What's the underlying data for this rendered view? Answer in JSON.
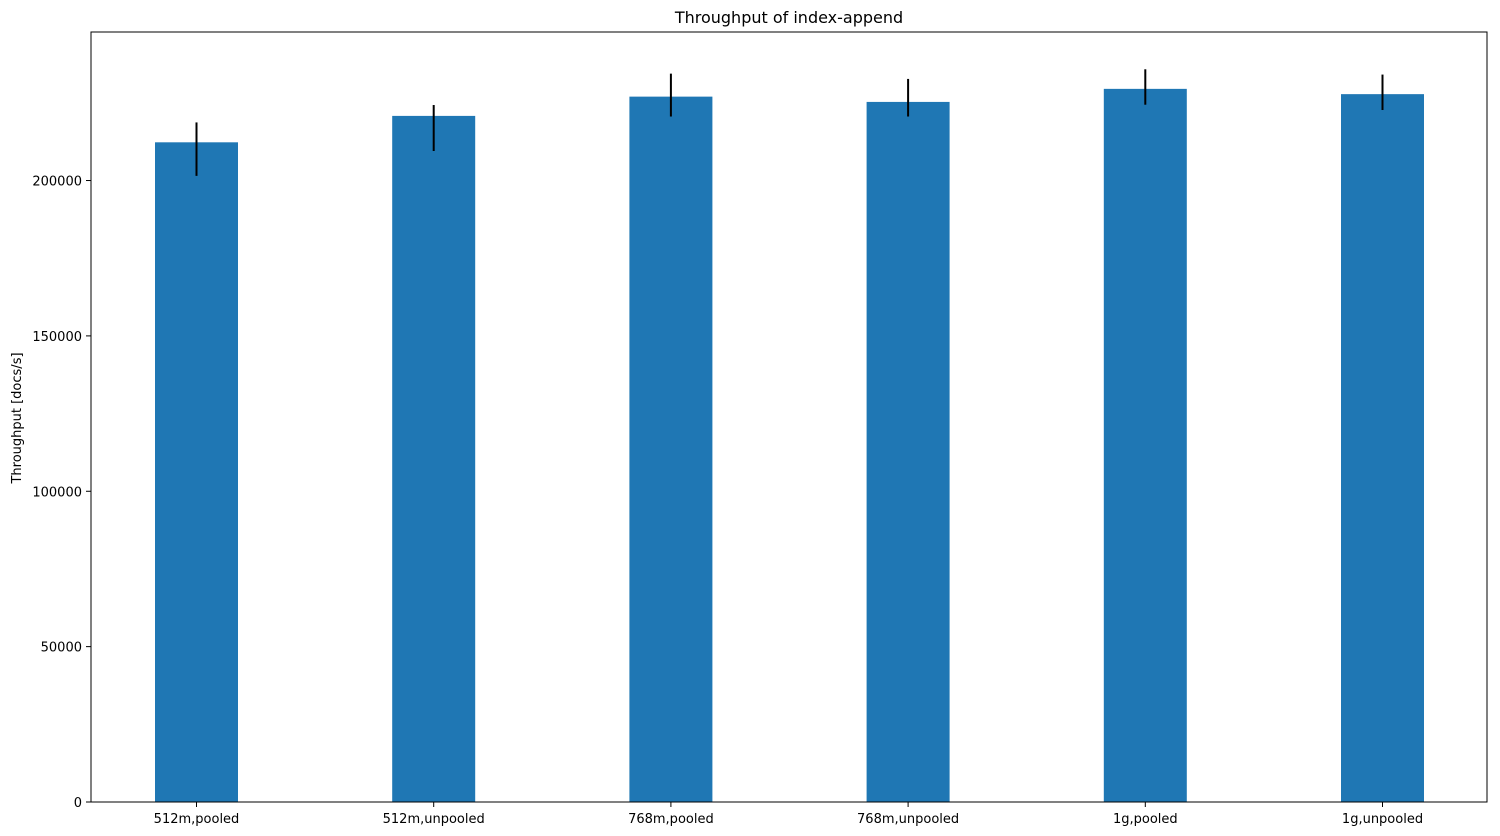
{
  "chart_data": {
    "type": "bar",
    "title": "Throughput of index-append",
    "xlabel": "",
    "ylabel": "Throughput [docs/s]",
    "categories": [
      "512m,pooled",
      "512m,unpooled",
      "768m,pooled",
      "768m,unpooled",
      "1g,pooled",
      "1g,unpooled"
    ],
    "values": [
      212300,
      220800,
      227000,
      225300,
      229500,
      227800
    ],
    "error_low": [
      201500,
      209500,
      220600,
      220600,
      224400,
      222700
    ],
    "error_high": [
      218700,
      224300,
      234400,
      232700,
      235800,
      234100
    ],
    "ylim": [
      0,
      247800
    ],
    "yticks": [
      0,
      50000,
      100000,
      150000,
      200000
    ],
    "ytick_labels": [
      "0",
      "50000",
      "100000",
      "150000",
      "200000"
    ],
    "bar_color": "#1f77b4",
    "error_color": "#000000",
    "grid": false,
    "legend": "none"
  }
}
